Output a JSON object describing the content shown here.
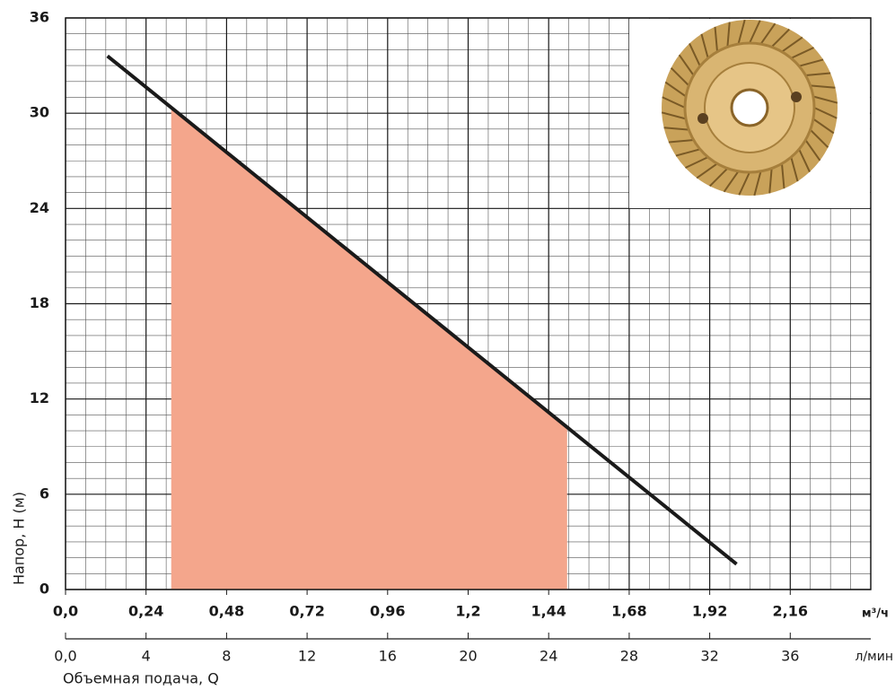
{
  "chart_data": {
    "type": "line",
    "ylabel": "Напор, H (м)",
    "xlabel": "Объемная подача, Q",
    "xunit": "м³/ч",
    "x2unit": "л/мин",
    "xlim": [
      0,
      2.4
    ],
    "xticks": [
      {
        "value": 0,
        "label": "0,0"
      },
      {
        "value": 0.24,
        "label": "0,24"
      },
      {
        "value": 0.48,
        "label": "0,48"
      },
      {
        "value": 0.72,
        "label": "0,72"
      },
      {
        "value": 0.96,
        "label": "0,96"
      },
      {
        "value": 1.2,
        "label": "1,2"
      },
      {
        "value": 1.44,
        "label": "1,44"
      },
      {
        "value": 1.68,
        "label": "1,68"
      },
      {
        "value": 1.92,
        "label": "1,92"
      },
      {
        "value": 2.16,
        "label": "2,16"
      }
    ],
    "x2lim": [
      0,
      40
    ],
    "x2ticks": [
      {
        "value": 0,
        "label": "0,0"
      },
      4,
      8,
      12,
      16,
      20,
      24,
      28,
      32,
      36
    ],
    "ylim": [
      0,
      36
    ],
    "yticks": [
      0,
      6,
      12,
      18,
      24,
      30,
      36
    ],
    "grid": true,
    "xminor": 0.06,
    "yminor": 1,
    "series": [
      {
        "color": "#f4a68c",
        "area": true,
        "x": [
          0.315,
          1.495
        ],
        "values": [
          30.4,
          10.1
        ]
      },
      {
        "color": "#1a1a1a",
        "x": [
          0.125,
          2.0
        ],
        "values": [
          33.6,
          1.6
        ]
      }
    ]
  }
}
